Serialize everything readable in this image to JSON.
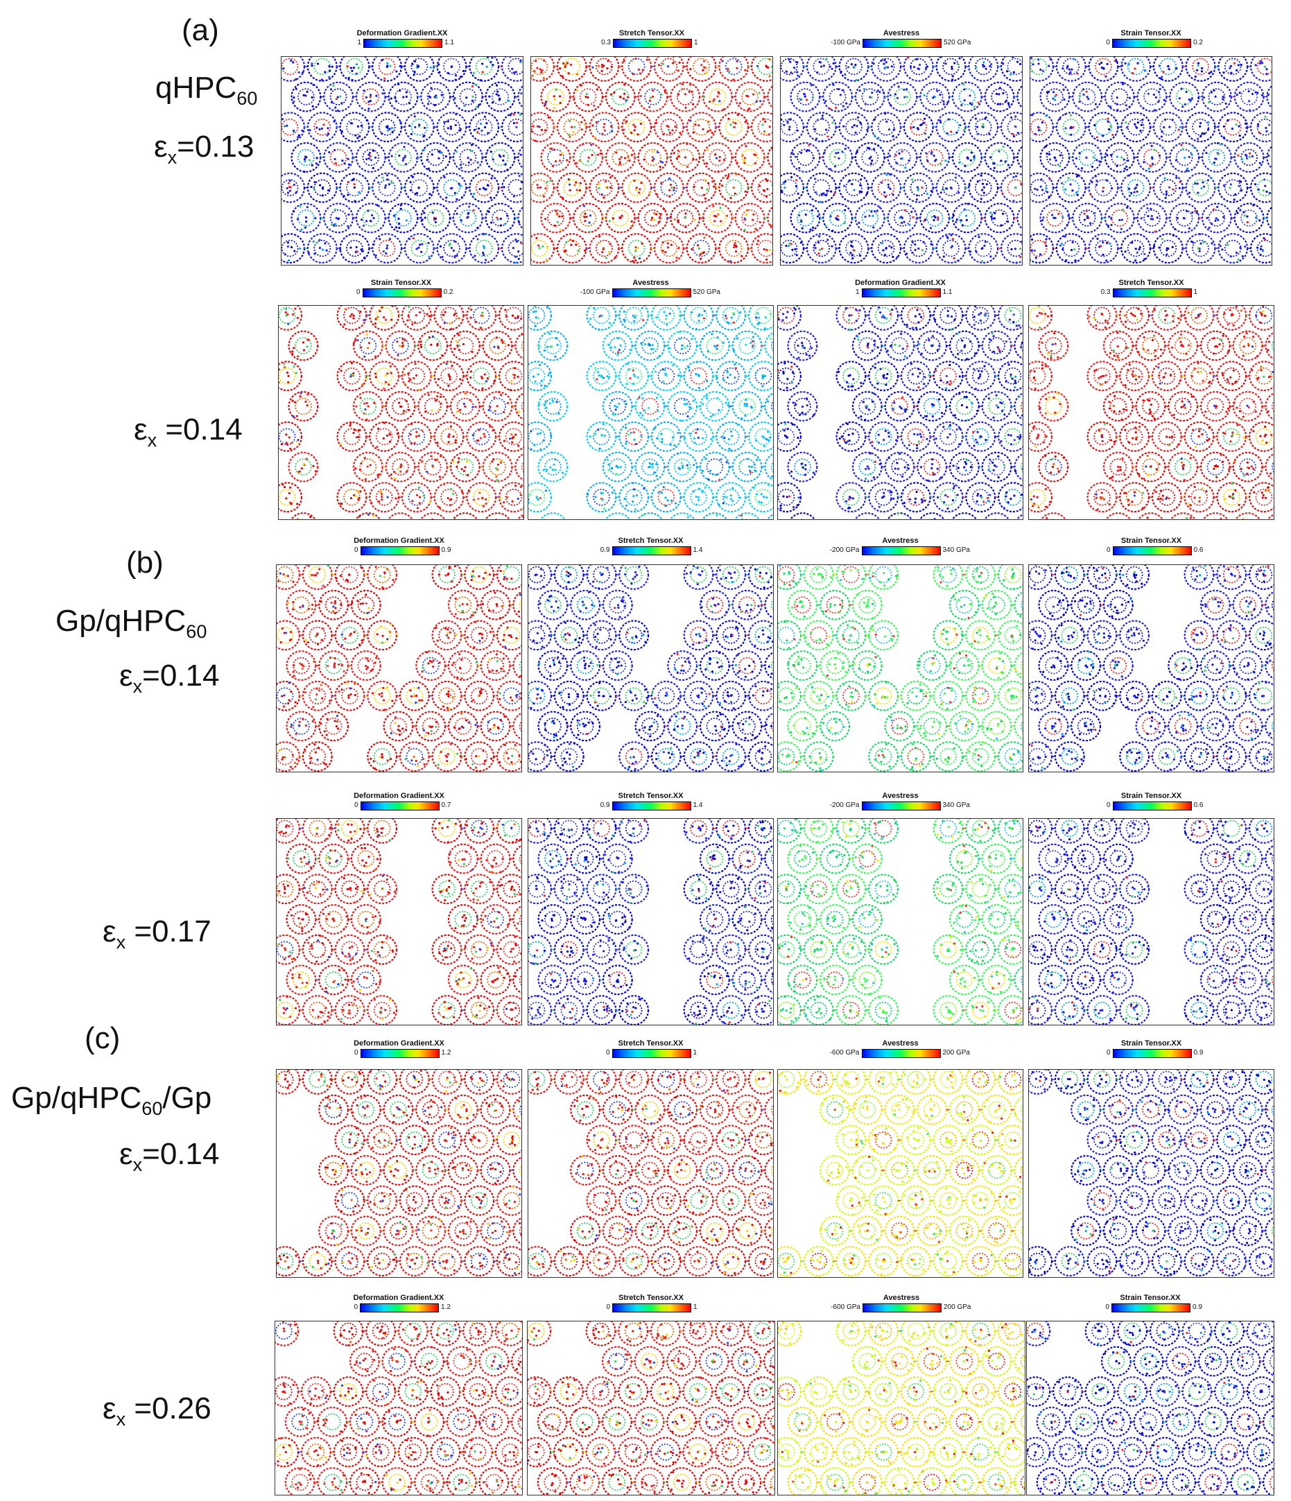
{
  "labels": {
    "a_tag": "(a)",
    "a_material": "qHPC",
    "a_material_sub": "60",
    "a_strain1_pre": "ε",
    "a_strain1_sub": "x",
    "a_strain1_val": "=0.13",
    "a_strain2_pre": "ε",
    "a_strain2_sub": "x",
    "a_strain2_val": " =0.14",
    "b_tag": "(b)",
    "b_material_pre": "Gp/qHPC",
    "b_material_sub": "60",
    "b_strain1_pre": "ε",
    "b_strain1_sub": "x",
    "b_strain1_val": "=0.14",
    "b_strain2_pre": "ε",
    "b_strain2_sub": "x",
    "b_strain2_val": " =0.17",
    "c_tag": "(c)",
    "c_material_pre": "Gp/qHPC",
    "c_material_sub": "60",
    "c_material_post": "/Gp",
    "c_strain1_pre": "ε",
    "c_strain1_sub": "x",
    "c_strain1_val": "=0.14",
    "c_strain2_pre": "ε",
    "c_strain2_sub": "x",
    "c_strain2_val": " =0.26"
  },
  "colors": {
    "colormap": [
      "#0000ff",
      "#0080ff",
      "#00e0ff",
      "#00ff60",
      "#b0ff00",
      "#ffe000",
      "#ff7000",
      "#ff0000"
    ],
    "frame_border": "#333333"
  },
  "rows": [
    {
      "id": "a1",
      "fracture": "none",
      "panels": [
        {
          "title": "Deformation Gradient.XX",
          "min": "1",
          "max": "1.1",
          "dominant": "blue"
        },
        {
          "title": "Stretch Tensor.XX",
          "min": "0.3",
          "max": "1",
          "dominant": "red"
        },
        {
          "title": "Avestress",
          "min": "-100 GPa",
          "max": "520 GPa",
          "dominant": "blue"
        },
        {
          "title": "Strain Tensor.XX",
          "min": "0",
          "max": "0.2",
          "dominant": "blue"
        }
      ]
    },
    {
      "id": "a2",
      "fracture": "vertical gap left",
      "panels": [
        {
          "title": "Strain Tensor.XX",
          "min": "0",
          "max": "0.2",
          "dominant": "red"
        },
        {
          "title": "Avestress",
          "min": "-100 GPa",
          "max": "520 GPa",
          "dominant": "cyan"
        },
        {
          "title": "Deformation Gradient.XX",
          "min": "1",
          "max": "1.1",
          "dominant": "blue"
        },
        {
          "title": "Stretch Tensor.XX",
          "min": "0.3",
          "max": "1",
          "dominant": "red"
        }
      ]
    },
    {
      "id": "b1",
      "fracture": "diagonal gap center",
      "panels": [
        {
          "title": "Deformation Gradient.XX",
          "min": "0",
          "max": "0.9",
          "dominant": "red"
        },
        {
          "title": "Stretch Tensor.XX",
          "min": "0.9",
          "max": "1.4",
          "dominant": "blue"
        },
        {
          "title": "Avestress",
          "min": "-200 GPa",
          "max": "340 GPa",
          "dominant": "green"
        },
        {
          "title": "Strain Tensor.XX",
          "min": "0",
          "max": "0.6",
          "dominant": "blue"
        }
      ]
    },
    {
      "id": "b2",
      "fracture": "wide gap center",
      "panels": [
        {
          "title": "Deformation Gradient.XX",
          "min": "0",
          "max": "0.7",
          "dominant": "red"
        },
        {
          "title": "Stretch Tensor.XX",
          "min": "0.9",
          "max": "1.4",
          "dominant": "blue"
        },
        {
          "title": "Avestress",
          "min": "-200 GPa",
          "max": "340 GPa",
          "dominant": "green"
        },
        {
          "title": "Strain Tensor.XX",
          "min": "0",
          "max": "0.6",
          "dominant": "blue"
        }
      ]
    },
    {
      "id": "c1",
      "fracture": "gap left",
      "panels": [
        {
          "title": "Deformation Gradient.XX",
          "min": "0",
          "max": "1.2",
          "dominant": "red"
        },
        {
          "title": "Stretch Tensor.XX",
          "min": "0",
          "max": "1",
          "dominant": "red"
        },
        {
          "title": "Avestress",
          "min": "-600 GPa",
          "max": "200 GPa",
          "dominant": "yellow"
        },
        {
          "title": "Strain Tensor.XX",
          "min": "0",
          "max": "0.9",
          "dominant": "blue"
        }
      ]
    },
    {
      "id": "c2",
      "fracture": "gap upper left",
      "panels": [
        {
          "title": "Deformation Gradient.XX",
          "min": "0",
          "max": "1.2",
          "dominant": "red"
        },
        {
          "title": "Stretch Tensor.XX",
          "min": "0",
          "max": "1",
          "dominant": "red"
        },
        {
          "title": "Avestress",
          "min": "-600 GPa",
          "max": "200 GPa",
          "dominant": "yellow"
        },
        {
          "title": "Strain Tensor.XX",
          "min": "0",
          "max": "0.9",
          "dominant": "blue"
        }
      ]
    }
  ]
}
